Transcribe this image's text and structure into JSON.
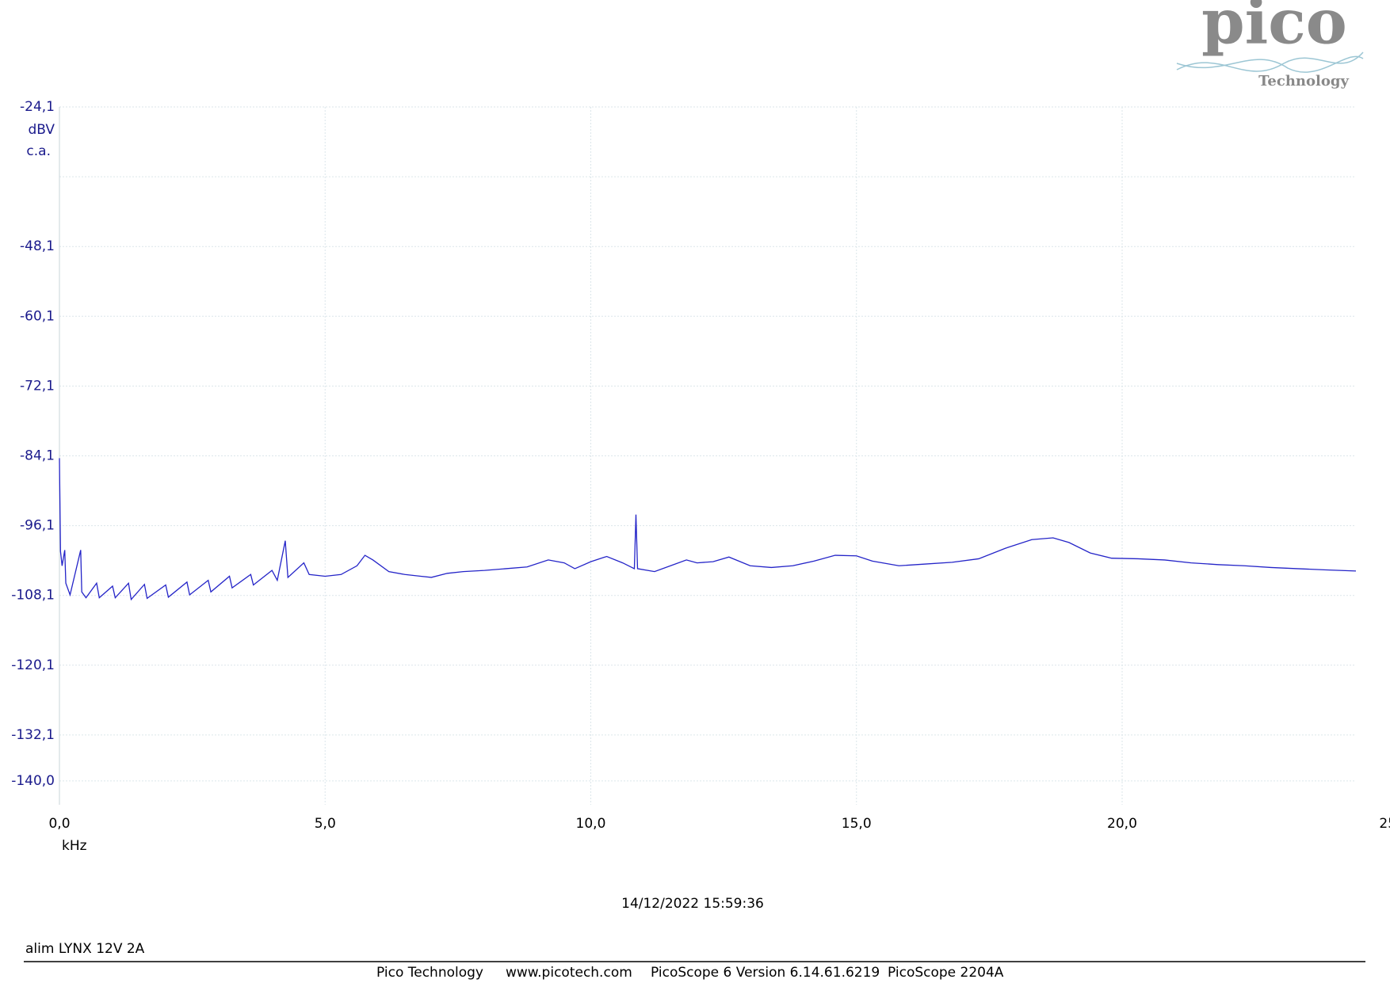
{
  "logo": {
    "brand": "pico",
    "sub": "Technology"
  },
  "chart_data": {
    "type": "line",
    "y_unit": "dBV",
    "y_coupling": "c.a.",
    "x_unit": "kHz",
    "color": "#2424c8",
    "grid": true,
    "xlim": [
      0,
      24.4
    ],
    "ylim": [
      -144.1,
      -24.1
    ],
    "xticks": [
      {
        "value": 0,
        "label": "0,0"
      },
      {
        "value": 5,
        "label": "5,0"
      },
      {
        "value": 10,
        "label": "10,0"
      },
      {
        "value": 15,
        "label": "15,0"
      },
      {
        "value": 20,
        "label": "20,0"
      },
      25
    ],
    "yticks": [
      {
        "value": -24.1,
        "label": "-24,1"
      },
      {
        "value": -36.1,
        "label": null
      },
      {
        "value": -48.1,
        "label": "-48,1"
      },
      {
        "value": -60.1,
        "label": "-60,1"
      },
      {
        "value": -72.1,
        "label": "-72,1"
      },
      {
        "value": -84.1,
        "label": "-84,1"
      },
      {
        "value": -96.1,
        "label": "-96,1"
      },
      {
        "value": -108.1,
        "label": "-108,1"
      },
      {
        "value": -120.1,
        "label": "-120,1"
      },
      {
        "value": -132.1,
        "label": "-132,1"
      },
      {
        "value": -140.0,
        "label": "-140,0"
      }
    ],
    "x": [
      0,
      0.02,
      0.05,
      0.1,
      0.12,
      0.2,
      0.4,
      0.42,
      0.5,
      0.7,
      0.75,
      1.0,
      1.05,
      1.3,
      1.35,
      1.6,
      1.65,
      2.0,
      2.05,
      2.4,
      2.45,
      2.8,
      2.85,
      3.2,
      3.25,
      3.6,
      3.65,
      4.0,
      4.1,
      4.25,
      4.3,
      4.6,
      4.7,
      5.0,
      5.3,
      5.6,
      5.75,
      5.9,
      6.2,
      6.5,
      6.8,
      7.0,
      7.3,
      7.6,
      8.0,
      8.4,
      8.8,
      9.2,
      9.5,
      9.7,
      10.0,
      10.3,
      10.6,
      10.82,
      10.85,
      10.88,
      11.2,
      11.5,
      11.8,
      12.0,
      12.3,
      12.6,
      13.0,
      13.4,
      13.8,
      14.2,
      14.6,
      15.0,
      15.3,
      15.8,
      16.3,
      16.8,
      17.3,
      17.8,
      18.3,
      18.7,
      19.0,
      19.4,
      19.8,
      20.3,
      20.8,
      21.3,
      21.8,
      22.3,
      22.8,
      23.3,
      23.8,
      24.4
    ],
    "values": [
      -84.5,
      -100.5,
      -103,
      -100.3,
      -106,
      -108,
      -100.3,
      -107.5,
      -108.5,
      -106,
      -108.5,
      -106.5,
      -108.5,
      -106,
      -108.8,
      -106.2,
      -108.6,
      -106.3,
      -108.4,
      -105.8,
      -108,
      -105.5,
      -107.5,
      -104.8,
      -106.8,
      -104.5,
      -106.3,
      -103.8,
      -105.5,
      -98.7,
      -105,
      -102.5,
      -104.5,
      -104.8,
      -104.5,
      -103,
      -101.2,
      -102,
      -104,
      -104.5,
      -104.8,
      -105,
      -104.3,
      -104,
      -103.8,
      -103.5,
      -103.2,
      -102,
      -102.5,
      -103.5,
      -102.3,
      -101.4,
      -102.5,
      -103.5,
      -94.2,
      -103.5,
      -104,
      -103,
      -102,
      -102.5,
      -102.3,
      -101.5,
      -103,
      -103.3,
      -103,
      -102.2,
      -101.2,
      -101.3,
      -102.2,
      -103,
      -102.7,
      -102.4,
      -101.8,
      -100,
      -98.5,
      -98.2,
      -99,
      -100.8,
      -101.7,
      -101.8,
      -102,
      -102.5,
      -102.8,
      -103,
      -103.3,
      -103.5,
      -103.7,
      -103.9
    ]
  },
  "timestamp": "14/12/2022 15:59:36",
  "note": "alim LYNX 12V 2A",
  "footer": [
    "Pico Technology",
    "www.picotech.com",
    "PicoScope 6 Version 6.14.61.6219",
    "PicoScope 2204A"
  ]
}
